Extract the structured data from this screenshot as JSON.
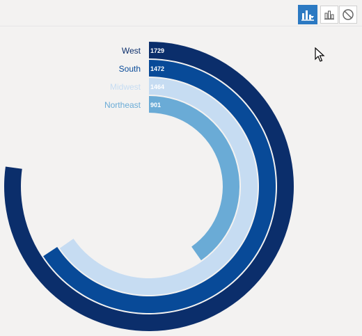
{
  "toolbar": {
    "buttons": [
      {
        "icon": "chart-options-icon",
        "active": true
      },
      {
        "icon": "bar-chart-icon",
        "active": false
      },
      {
        "icon": "clear-icon",
        "active": false
      }
    ]
  },
  "chart_data": {
    "type": "radial-bar",
    "title": "",
    "categories": [
      "West",
      "South",
      "Midwest",
      "Northeast"
    ],
    "values": [
      1729,
      1472,
      1464,
      901
    ],
    "max_value": 2240,
    "colors": [
      "#0b2e6b",
      "#084a98",
      "#c6dcf2",
      "#6aabd6"
    ],
    "label_colors": [
      "#0b2e6b",
      "#084a98",
      "#c6dcf2",
      "#6aabd6"
    ],
    "legend": "labels at arc starts"
  }
}
